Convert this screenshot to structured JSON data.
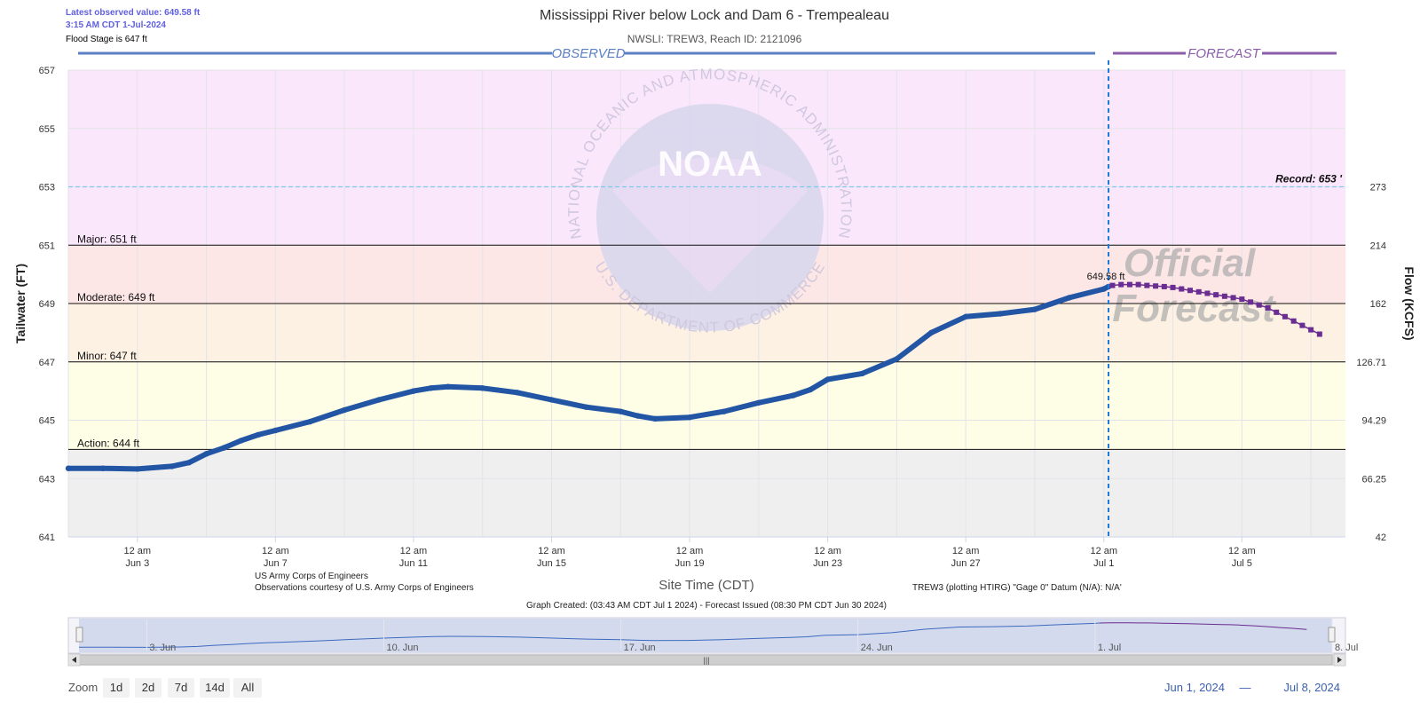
{
  "header": {
    "latest_value": "Latest observed value: 649.58 ft",
    "latest_time": "3:15 AM CDT 1-Jul-2024",
    "flood_stage": "Flood Stage is 647 ft",
    "title": "Mississippi River below Lock and Dam 6 - Trempealeau",
    "subtitle": "NWSLI: TREW3, Reach ID: 2121096"
  },
  "sections": {
    "observed": "OBSERVED",
    "forecast": "FORECAST"
  },
  "watermark": {
    "agency": "NOAA",
    "ring_top": "NATIONAL OCEANIC AND ATMOSPHERIC ADMINISTRATION",
    "ring_bottom": "U.S. DEPARTMENT OF COMMERCE",
    "official_1": "Official",
    "official_2": "Forecast"
  },
  "footer": {
    "credit_1": "US Army Corps of Engineers",
    "credit_2": "Observations courtesy of U.S. Army Corps of Engineers",
    "datum_note": "TREW3 (plotting HTIRG) \"Gage 0\" Datum (N/A): N/A'",
    "created": "Graph Created: (03:43 AM CDT Jul 1 2024) - Forecast Issued (08:30 PM CDT Jun 30 2024)"
  },
  "navigator": {
    "labels": [
      "3. Jun",
      "10. Jun",
      "17. Jun",
      "24. Jun",
      "1. Jul",
      "8. Jul"
    ],
    "scroll_grip": "|||"
  },
  "zoom": {
    "label": "Zoom",
    "buttons": [
      "1d",
      "2d",
      "7d",
      "14d",
      "All"
    ]
  },
  "range": {
    "from": "Jun 1, 2024",
    "dash": "—",
    "to": "Jul 8, 2024"
  },
  "colors": {
    "observed_line": "#2255a4",
    "forecast_line": "#6a2d91",
    "record_line": "#7fc8f0",
    "zone_major": "#fbe7fb",
    "zone_moderate": "#fde6e6",
    "zone_minor": "#fdf1e3",
    "zone_action": "#fefde6",
    "zone_normal": "#efefef",
    "observed_header": "#5b80c4",
    "forecast_header": "#8a5ea8"
  },
  "chart_data": {
    "type": "line",
    "title": "Mississippi River below Lock and Dam 6 - Trempealeau",
    "subtitle": "NWSLI: TREW3, Reach ID: 2121096",
    "xlabel": "Site Time (CDT)",
    "ylabel": "Tailwater (FT)",
    "y2label": "Flow (KCFS)",
    "ylim": [
      641,
      657
    ],
    "y_ticks": [
      641,
      643,
      645,
      647,
      649,
      651,
      653,
      655,
      657
    ],
    "y2_ticks": [
      {
        "stage": 641,
        "label": "42"
      },
      {
        "stage": 643,
        "label": "66.25"
      },
      {
        "stage": 645,
        "label": "94.29"
      },
      {
        "stage": 647,
        "label": "126.71"
      },
      {
        "stage": 649,
        "label": "162"
      },
      {
        "stage": 651,
        "label": "214"
      },
      {
        "stage": 653,
        "label": "273"
      }
    ],
    "x_range": [
      "2024-06-01T00:00",
      "2024-07-08T00:00"
    ],
    "x_ticks": [
      {
        "date": "2024-06-03T00:00",
        "l1": "12 am",
        "l2": "Jun 3"
      },
      {
        "date": "2024-06-07T00:00",
        "l1": "12 am",
        "l2": "Jun 7"
      },
      {
        "date": "2024-06-11T00:00",
        "l1": "12 am",
        "l2": "Jun 11"
      },
      {
        "date": "2024-06-15T00:00",
        "l1": "12 am",
        "l2": "Jun 15"
      },
      {
        "date": "2024-06-19T00:00",
        "l1": "12 am",
        "l2": "Jun 19"
      },
      {
        "date": "2024-06-23T00:00",
        "l1": "12 am",
        "l2": "Jun 23"
      },
      {
        "date": "2024-06-27T00:00",
        "l1": "12 am",
        "l2": "Jun 27"
      },
      {
        "date": "2024-07-01T00:00",
        "l1": "12 am",
        "l2": "Jul 1"
      },
      {
        "date": "2024-07-05T00:00",
        "l1": "12 am",
        "l2": "Jul 5"
      }
    ],
    "grid": true,
    "thresholds": [
      {
        "name": "Action",
        "stage": 644,
        "label": "Action: 644 ft"
      },
      {
        "name": "Minor",
        "stage": 647,
        "label": "Minor: 647 ft"
      },
      {
        "name": "Moderate",
        "stage": 649,
        "label": "Moderate: 649 ft"
      },
      {
        "name": "Major",
        "stage": 651,
        "label": "Major: 651 ft"
      },
      {
        "name": "Record",
        "stage": 653,
        "label": "Record: 653 '"
      }
    ],
    "current": {
      "date": "2024-07-01T03:15",
      "stage": 649.58,
      "label": "649.58 ft"
    },
    "series": [
      {
        "type": "line",
        "points": [
          [
            "2024-06-01T00:00",
            643.35
          ],
          [
            "2024-06-02T00:00",
            643.35
          ],
          [
            "2024-06-03T00:00",
            643.33
          ],
          [
            "2024-06-04T00:00",
            643.42
          ],
          [
            "2024-06-04T12:00",
            643.55
          ],
          [
            "2024-06-05T00:00",
            643.85
          ],
          [
            "2024-06-05T12:00",
            644.05
          ],
          [
            "2024-06-06T00:00",
            644.3
          ],
          [
            "2024-06-06T12:00",
            644.5
          ],
          [
            "2024-06-07T00:00",
            644.65
          ],
          [
            "2024-06-08T00:00",
            644.95
          ],
          [
            "2024-06-09T00:00",
            645.35
          ],
          [
            "2024-06-10T00:00",
            645.7
          ],
          [
            "2024-06-11T00:00",
            646.0
          ],
          [
            "2024-06-11T12:00",
            646.1
          ],
          [
            "2024-06-12T00:00",
            646.15
          ],
          [
            "2024-06-13T00:00",
            646.1
          ],
          [
            "2024-06-14T00:00",
            645.95
          ],
          [
            "2024-06-15T00:00",
            645.7
          ],
          [
            "2024-06-16T00:00",
            645.45
          ],
          [
            "2024-06-17T00:00",
            645.3
          ],
          [
            "2024-06-17T12:00",
            645.15
          ],
          [
            "2024-06-18T00:00",
            645.05
          ],
          [
            "2024-06-19T00:00",
            645.1
          ],
          [
            "2024-06-20T00:00",
            645.3
          ],
          [
            "2024-06-21T00:00",
            645.6
          ],
          [
            "2024-06-22T00:00",
            645.85
          ],
          [
            "2024-06-22T12:00",
            646.05
          ],
          [
            "2024-06-23T00:00",
            646.4
          ],
          [
            "2024-06-24T00:00",
            646.6
          ],
          [
            "2024-06-25T00:00",
            647.1
          ],
          [
            "2024-06-26T00:00",
            648.0
          ],
          [
            "2024-06-27T00:00",
            648.55
          ],
          [
            "2024-06-28T00:00",
            648.65
          ],
          [
            "2024-06-29T00:00",
            648.8
          ],
          [
            "2024-06-30T00:00",
            649.2
          ],
          [
            "2024-07-01T00:00",
            649.5
          ],
          [
            "2024-07-01T03:15",
            649.58
          ]
        ]
      },
      {
        "type": "line",
        "points": [
          [
            "2024-07-01T06:00",
            649.62
          ],
          [
            "2024-07-01T12:00",
            649.65
          ],
          [
            "2024-07-01T18:00",
            649.65
          ],
          [
            "2024-07-02T00:00",
            649.65
          ],
          [
            "2024-07-02T06:00",
            649.62
          ],
          [
            "2024-07-02T12:00",
            649.6
          ],
          [
            "2024-07-02T18:00",
            649.58
          ],
          [
            "2024-07-03T00:00",
            649.55
          ],
          [
            "2024-07-03T06:00",
            649.5
          ],
          [
            "2024-07-03T12:00",
            649.45
          ],
          [
            "2024-07-03T18:00",
            649.4
          ],
          [
            "2024-07-04T00:00",
            649.35
          ],
          [
            "2024-07-04T06:00",
            649.3
          ],
          [
            "2024-07-04T12:00",
            649.25
          ],
          [
            "2024-07-04T18:00",
            649.2
          ],
          [
            "2024-07-05T00:00",
            649.15
          ],
          [
            "2024-07-05T06:00",
            649.05
          ],
          [
            "2024-07-05T12:00",
            648.95
          ],
          [
            "2024-07-05T18:00",
            648.85
          ],
          [
            "2024-07-06T00:00",
            648.7
          ],
          [
            "2024-07-06T06:00",
            648.55
          ],
          [
            "2024-07-06T12:00",
            648.4
          ],
          [
            "2024-07-06T18:00",
            648.25
          ],
          [
            "2024-07-07T00:00",
            648.1
          ],
          [
            "2024-07-07T06:00",
            647.95
          ]
        ]
      }
    ]
  }
}
